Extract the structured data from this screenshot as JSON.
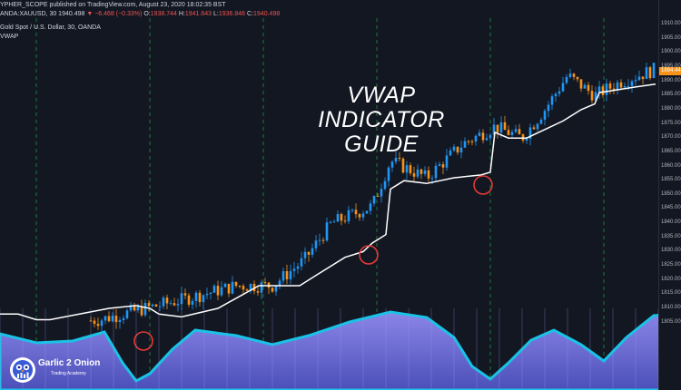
{
  "header": {
    "publish_line": "YPHER_SCOPE published on TradingView.com, August 23, 2020 18:02:35 BST",
    "symbol_line": "ANDA:XAUUSD, 30 1940.498",
    "change": "▼ −6.468 (−0.33%)",
    "o_label": "O:",
    "o_value": "1938.744",
    "h_label": "H:",
    "h_value": "1941.643",
    "l_label": "L:",
    "l_value": "1936.846",
    "c_label": "C:",
    "c_value": "1940.498"
  },
  "instrument": "Gold Spot / U.S. Dollar, 30, OANDA",
  "indicator": "VWAP",
  "title_line1": "VWAP",
  "title_line2": "INDICATOR GUIDE",
  "price_axis": {
    "ticks": [
      "1910.00",
      "1905.00",
      "1900.00",
      "1895.00",
      "1890.00",
      "1885.00",
      "1880.00",
      "1875.00",
      "1870.00",
      "1865.00",
      "1860.00",
      "1855.00",
      "1850.00",
      "1845.00",
      "1840.00",
      "1835.00",
      "1830.00",
      "1825.00",
      "1820.00",
      "1815.00",
      "1810.00",
      "1805.00"
    ],
    "last_price": "1894.44"
  },
  "logo": {
    "main": "Garlic 2 Onion",
    "sub": "Trading Academy"
  },
  "colors": {
    "background": "#131722",
    "up_candle": "#2196f3",
    "down_candle": "#f7931a",
    "vwap_line": "#ffffff",
    "session_line": "#1b5e20",
    "circle": "#e53935",
    "wave_fill": "#6f6fd8",
    "wave_edge": "#00bcd4"
  }
}
